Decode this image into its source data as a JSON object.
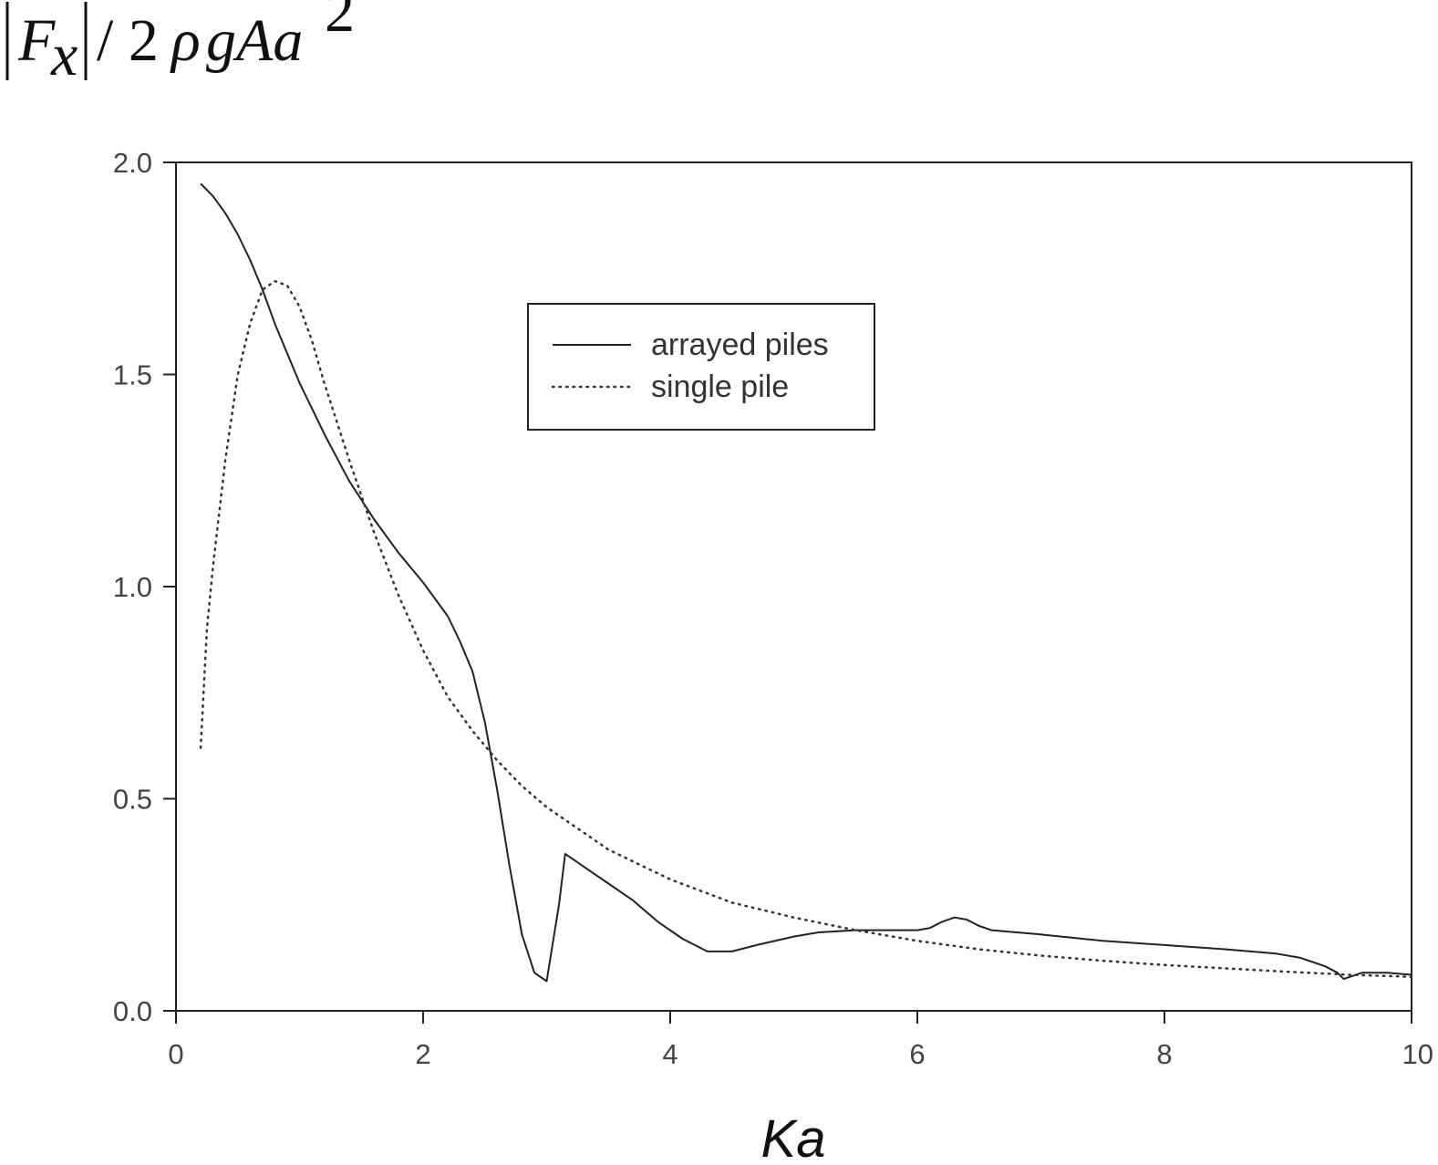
{
  "chart_data": {
    "type": "line",
    "title": "",
    "xlabel": "Ka",
    "ylabel": {
      "F": "F",
      "sub": "x",
      "rest": "/ 2",
      "rho": "ρ",
      "gAa": "gAa",
      "exp": "2"
    },
    "xlim": [
      0,
      10
    ],
    "ylim": [
      0,
      2
    ],
    "x_ticks": [
      0,
      2,
      4,
      6,
      8,
      10
    ],
    "x_tick_labels": [
      "0",
      "2",
      "4",
      "6",
      "8",
      "10"
    ],
    "y_ticks": [
      0,
      0.5,
      1.0,
      1.5,
      2.0
    ],
    "y_tick_labels": [
      "0.0",
      "0.5",
      "1.0",
      "1.5",
      "2.0"
    ],
    "grid": false,
    "legend_position": "upper-center",
    "series": [
      {
        "name": "arrayed piles",
        "style": "solid",
        "color": "#222222",
        "x": [
          0.2,
          0.3,
          0.4,
          0.5,
          0.6,
          0.7,
          0.8,
          0.9,
          1.0,
          1.1,
          1.2,
          1.4,
          1.6,
          1.8,
          2.0,
          2.2,
          2.3,
          2.4,
          2.5,
          2.6,
          2.65,
          2.7,
          2.8,
          2.9,
          3.0,
          3.1,
          3.15,
          3.2,
          3.3,
          3.5,
          3.7,
          3.9,
          4.1,
          4.3,
          4.5,
          4.7,
          5.0,
          5.2,
          5.5,
          5.8,
          6.0,
          6.1,
          6.2,
          6.3,
          6.4,
          6.5,
          6.6,
          7.0,
          7.5,
          8.0,
          8.5,
          8.9,
          9.1,
          9.2,
          9.3,
          9.4,
          9.45,
          9.5,
          9.6,
          9.8,
          10.0
        ],
        "y": [
          1.95,
          1.92,
          1.88,
          1.83,
          1.77,
          1.7,
          1.62,
          1.55,
          1.48,
          1.42,
          1.36,
          1.25,
          1.16,
          1.08,
          1.01,
          0.93,
          0.87,
          0.8,
          0.68,
          0.52,
          0.43,
          0.34,
          0.18,
          0.09,
          0.07,
          0.25,
          0.37,
          0.36,
          0.34,
          0.3,
          0.26,
          0.21,
          0.17,
          0.14,
          0.14,
          0.155,
          0.175,
          0.185,
          0.19,
          0.19,
          0.19,
          0.195,
          0.21,
          0.22,
          0.215,
          0.2,
          0.19,
          0.18,
          0.165,
          0.155,
          0.145,
          0.135,
          0.125,
          0.115,
          0.105,
          0.09,
          0.075,
          0.08,
          0.09,
          0.09,
          0.085
        ]
      },
      {
        "name": "single pile",
        "style": "dotted",
        "color": "#333333",
        "x": [
          0.2,
          0.25,
          0.3,
          0.4,
          0.5,
          0.6,
          0.7,
          0.8,
          0.9,
          1.0,
          1.1,
          1.2,
          1.4,
          1.6,
          1.8,
          2.0,
          2.2,
          2.4,
          2.6,
          2.8,
          3.0,
          3.5,
          4.0,
          4.5,
          5.0,
          5.5,
          6.0,
          6.5,
          7.0,
          7.5,
          8.0,
          8.5,
          9.0,
          9.5,
          10.0
        ],
        "y": [
          0.62,
          0.9,
          1.05,
          1.3,
          1.5,
          1.62,
          1.7,
          1.72,
          1.71,
          1.66,
          1.58,
          1.48,
          1.3,
          1.13,
          0.98,
          0.85,
          0.74,
          0.66,
          0.59,
          0.53,
          0.48,
          0.38,
          0.31,
          0.255,
          0.22,
          0.19,
          0.165,
          0.145,
          0.13,
          0.118,
          0.108,
          0.1,
          0.092,
          0.085,
          0.08
        ]
      }
    ]
  }
}
